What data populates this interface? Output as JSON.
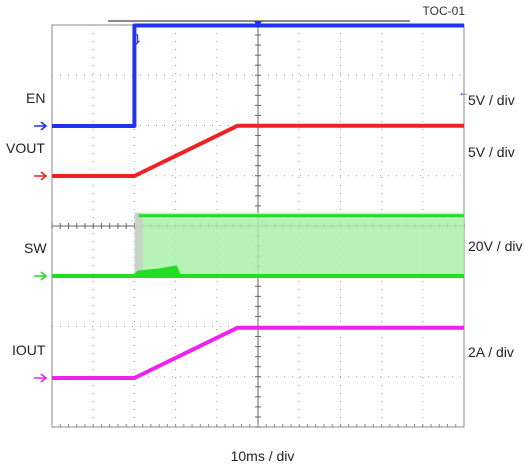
{
  "chart_data": {
    "type": "line",
    "title": "TOC-01",
    "xlabel": "10ms / div",
    "grid": true,
    "channels": [
      {
        "name": "EN",
        "scale": "5V / div",
        "color": "#2233ee",
        "unit": "V",
        "volts_per_div": 5,
        "offset_div": 1.0,
        "points": [
          [
            0,
            0
          ],
          [
            10,
            0
          ],
          [
            10,
            10
          ],
          [
            50,
            10
          ]
        ]
      },
      {
        "name": "VOUT",
        "scale": "5V / div",
        "color": "#ee2222",
        "unit": "V",
        "volts_per_div": 5,
        "offset_div": 0.0,
        "points": [
          [
            0,
            0
          ],
          [
            10,
            0
          ],
          [
            22.5,
            5
          ],
          [
            50,
            5
          ]
        ]
      },
      {
        "name": "SW",
        "scale": "20V / div",
        "color": "#22dd22",
        "unit": "V",
        "volts_per_div": 20,
        "offset_div": 0.0,
        "switching_start": 11,
        "switching_high": 24,
        "points": [
          [
            0,
            0
          ],
          [
            10,
            0
          ],
          [
            50,
            0
          ]
        ]
      },
      {
        "name": "IOUT",
        "scale": "2A / div",
        "color": "#ee22ee",
        "unit": "A",
        "volts_per_div": 2,
        "offset_div": 0.0,
        "points": [
          [
            0,
            0
          ],
          [
            10,
            0
          ],
          [
            22.5,
            2
          ],
          [
            50,
            2
          ]
        ]
      }
    ]
  }
}
